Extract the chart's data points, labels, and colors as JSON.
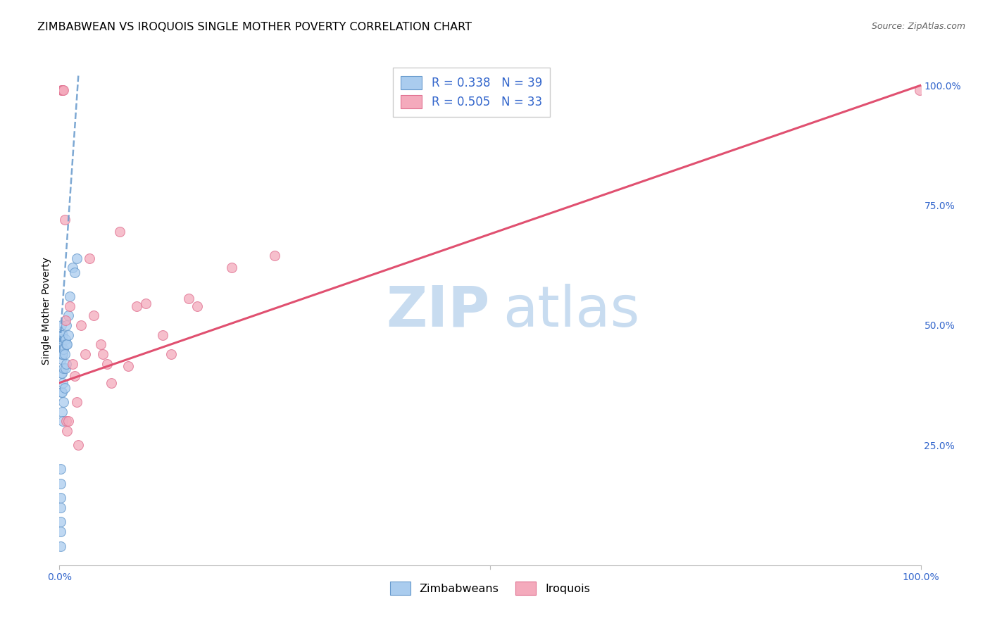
{
  "title": "ZIMBABWEAN VS IROQUOIS SINGLE MOTHER POVERTY CORRELATION CHART",
  "source": "Source: ZipAtlas.com",
  "ylabel": "Single Mother Poverty",
  "legend_blue_r": "R = 0.338",
  "legend_blue_n": "N = 39",
  "legend_pink_r": "R = 0.505",
  "legend_pink_n": "N = 33",
  "blue_fill": "#AACCEE",
  "blue_edge": "#6699CC",
  "pink_fill": "#F4AABC",
  "pink_edge": "#E07090",
  "blue_line_color": "#6699CC",
  "pink_line_color": "#E05070",
  "watermark_zip": "ZIP",
  "watermark_atlas": "atlas",
  "blue_scatter_x": [
    0.001,
    0.001,
    0.001,
    0.001,
    0.001,
    0.001,
    0.001,
    0.002,
    0.002,
    0.002,
    0.002,
    0.002,
    0.002,
    0.003,
    0.003,
    0.003,
    0.003,
    0.003,
    0.004,
    0.004,
    0.004,
    0.004,
    0.005,
    0.005,
    0.005,
    0.006,
    0.006,
    0.007,
    0.007,
    0.008,
    0.008,
    0.008,
    0.009,
    0.01,
    0.01,
    0.012,
    0.015,
    0.018,
    0.02
  ],
  "blue_scatter_y": [
    0.04,
    0.07,
    0.09,
    0.12,
    0.14,
    0.17,
    0.2,
    0.36,
    0.4,
    0.43,
    0.46,
    0.48,
    0.5,
    0.32,
    0.36,
    0.4,
    0.44,
    0.47,
    0.3,
    0.38,
    0.44,
    0.48,
    0.34,
    0.41,
    0.45,
    0.37,
    0.44,
    0.41,
    0.47,
    0.42,
    0.46,
    0.5,
    0.46,
    0.48,
    0.52,
    0.56,
    0.62,
    0.61,
    0.64
  ],
  "pink_scatter_x": [
    0.002,
    0.003,
    0.004,
    0.005,
    0.006,
    0.007,
    0.008,
    0.009,
    0.01,
    0.012,
    0.015,
    0.018,
    0.02,
    0.022,
    0.025,
    0.03,
    0.035,
    0.04,
    0.05,
    0.06,
    0.07,
    0.08,
    0.09,
    0.1,
    0.12,
    0.15,
    0.2,
    0.25,
    0.048,
    0.055,
    0.13,
    0.16,
    0.999
  ],
  "pink_scatter_y": [
    0.99,
    0.99,
    0.99,
    0.99,
    0.72,
    0.51,
    0.3,
    0.28,
    0.3,
    0.54,
    0.42,
    0.395,
    0.34,
    0.25,
    0.5,
    0.44,
    0.64,
    0.52,
    0.44,
    0.38,
    0.695,
    0.415,
    0.54,
    0.545,
    0.48,
    0.555,
    0.62,
    0.645,
    0.46,
    0.42,
    0.44,
    0.54,
    0.99
  ],
  "blue_trend_x": [
    0.0,
    0.022
  ],
  "blue_trend_y": [
    0.445,
    1.02
  ],
  "pink_trend_x": [
    0.0,
    1.0
  ],
  "pink_trend_y": [
    0.38,
    1.0
  ],
  "xlim": [
    0.0,
    1.0
  ],
  "ylim": [
    0.0,
    1.06
  ],
  "yticks": [
    0.0,
    0.25,
    0.5,
    0.75,
    1.0
  ],
  "ytick_labels": [
    "",
    "25.0%",
    "50.0%",
    "75.0%",
    "100.0%"
  ],
  "grid_color": "#DDDDDD",
  "title_fontsize": 11.5,
  "source_fontsize": 9,
  "tick_fontsize": 10,
  "ylabel_fontsize": 10,
  "legend_fontsize": 12,
  "scatter_size": 100,
  "scatter_alpha": 0.75
}
